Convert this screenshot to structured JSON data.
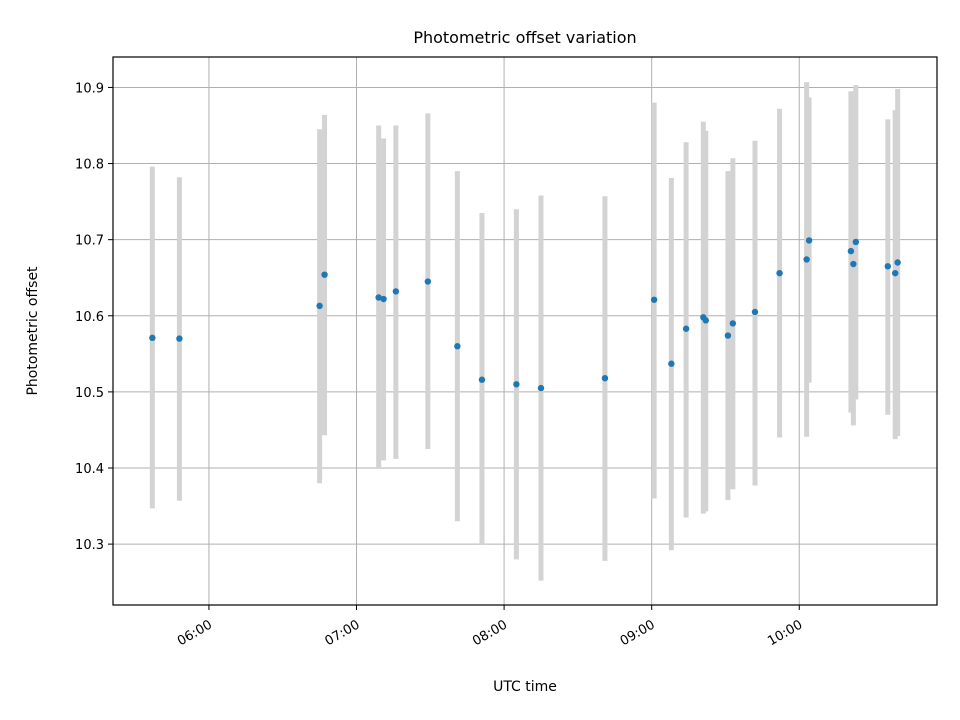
{
  "chart_data": {
    "type": "scatter",
    "title": "Photometric offset variation",
    "xlabel": "UTC time",
    "ylabel": "Photometric offset",
    "x_is_time": true,
    "xlim": [
      "05:21",
      "10:56"
    ],
    "ylim": [
      10.22,
      10.94
    ],
    "x_ticks": [
      "06:00",
      "07:00",
      "08:00",
      "09:00",
      "10:00"
    ],
    "y_ticks": [
      10.3,
      10.4,
      10.5,
      10.6,
      10.7,
      10.8,
      10.9
    ],
    "grid": true,
    "colors": {
      "points": "#1f77b4",
      "errorbars": "#d3d3d3",
      "grid": "#b0b0b0"
    },
    "series": [
      {
        "x": [
          "05:37",
          "05:48",
          "06:45",
          "06:47",
          "07:09",
          "07:11",
          "07:16",
          "07:29",
          "07:41",
          "07:51",
          "08:05",
          "08:15",
          "08:41",
          "09:01",
          "09:08",
          "09:14",
          "09:21",
          "09:22",
          "09:31",
          "09:33",
          "09:42",
          "09:52",
          "10:03",
          "10:04",
          "10:21",
          "10:22",
          "10:23",
          "10:36",
          "10:39",
          "10:40"
        ],
        "y": [
          10.571,
          10.57,
          10.613,
          10.654,
          10.624,
          10.622,
          10.632,
          10.645,
          10.56,
          10.516,
          10.51,
          10.505,
          10.518,
          10.621,
          10.537,
          10.583,
          10.598,
          10.594,
          10.574,
          10.59,
          10.605,
          10.656,
          10.674,
          10.699,
          10.685,
          10.668,
          10.697,
          10.665,
          10.656,
          10.67
        ],
        "yerr_low": [
          10.347,
          10.357,
          10.38,
          10.443,
          10.4,
          10.41,
          10.412,
          10.425,
          10.33,
          10.3,
          10.28,
          10.252,
          10.278,
          10.36,
          10.292,
          10.335,
          10.34,
          10.343,
          10.358,
          10.372,
          10.377,
          10.44,
          10.441,
          10.512,
          10.473,
          10.456,
          10.49,
          10.47,
          10.438,
          10.442
        ],
        "yerr_high": [
          10.796,
          10.782,
          10.845,
          10.864,
          10.85,
          10.833,
          10.85,
          10.866,
          10.79,
          10.735,
          10.74,
          10.758,
          10.757,
          10.88,
          10.781,
          10.828,
          10.855,
          10.843,
          10.79,
          10.807,
          10.83,
          10.872,
          10.907,
          10.887,
          10.895,
          10.878,
          10.903,
          10.858,
          10.87,
          10.898
        ]
      }
    ]
  }
}
